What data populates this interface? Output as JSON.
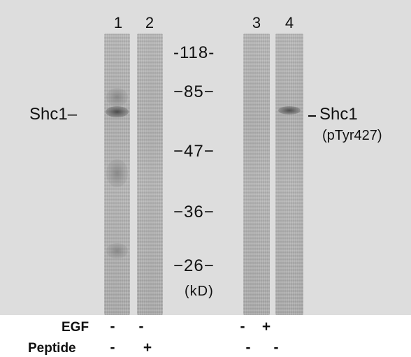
{
  "lanes": {
    "numbers": [
      "1",
      "2",
      "3",
      "4"
    ]
  },
  "markers": {
    "values": [
      "-118-",
      "−85−",
      "−47−",
      "−36−",
      "−26−"
    ],
    "unit": "(kD)"
  },
  "labels": {
    "left_protein": "Shc1–",
    "right_protein": "Shc1",
    "right_modification": "(pTyr427)"
  },
  "conditions": {
    "egf_label": "EGF",
    "peptide_label": "Peptide",
    "egf_signs": [
      "-",
      "-",
      "-",
      "+"
    ],
    "peptide_signs": [
      "-",
      "+",
      "-",
      "-"
    ]
  },
  "colors": {
    "panel_background": "#dddddd",
    "lane_gray": "#b4b4b4",
    "band_dark": "#3c3c3c",
    "text": "#111111"
  }
}
